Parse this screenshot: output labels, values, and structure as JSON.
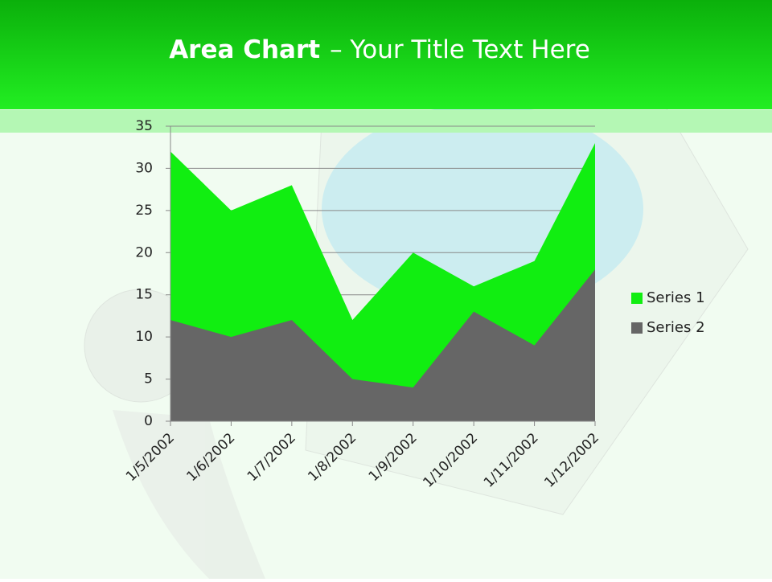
{
  "chart_data": {
    "type": "area",
    "title_emphasis": "Area Chart",
    "title": "– Your Title Text Here",
    "categories": [
      "1/5/2002",
      "1/6/2002",
      "1/7/2002",
      "1/8/2002",
      "1/9/2002",
      "1/10/2002",
      "1/11/2002",
      "1/12/2002"
    ],
    "series": [
      {
        "name": "Series 1",
        "color": "#11ee11",
        "values": [
          32,
          25,
          28,
          12,
          20,
          16,
          19,
          33
        ]
      },
      {
        "name": "Series 2",
        "color": "#666666",
        "values": [
          12,
          10,
          12,
          5,
          4,
          13,
          9,
          18
        ]
      }
    ],
    "ylim": [
      0,
      35
    ],
    "yticks": [
      0,
      5,
      10,
      15,
      20,
      25,
      30,
      35
    ],
    "grid": true,
    "legend": "right"
  }
}
